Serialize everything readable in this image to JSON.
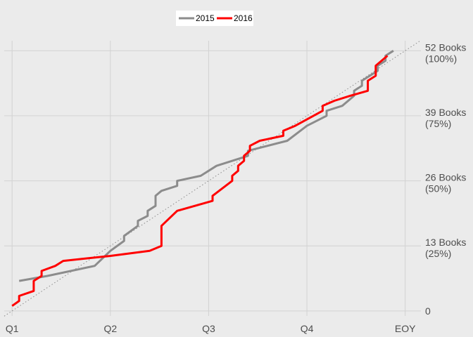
{
  "chart_data": {
    "type": "line",
    "title": "",
    "xlabel": "",
    "ylabel": "",
    "x_unit": "fraction of year",
    "xlim": [
      -0.02,
      1.04
    ],
    "ylim": [
      -1,
      54
    ],
    "x_ticks": [
      {
        "value": 0.0,
        "label": "Q1"
      },
      {
        "value": 0.25,
        "label": "Q2"
      },
      {
        "value": 0.5,
        "label": "Q3"
      },
      {
        "value": 0.75,
        "label": "Q4"
      },
      {
        "value": 1.0,
        "label": "EOY"
      }
    ],
    "y_ticks": [
      {
        "value": 0,
        "label": [
          "0"
        ]
      },
      {
        "value": 13,
        "label": [
          "13 Books",
          "(25%)"
        ]
      },
      {
        "value": 26,
        "label": [
          "26 Books",
          "(50%)"
        ]
      },
      {
        "value": 39,
        "label": [
          "39 Books",
          "(75%)"
        ]
      },
      {
        "value": 52,
        "label": [
          "52 Books",
          "(100%)"
        ]
      }
    ],
    "grid": true,
    "legend_position": "top-center",
    "reference_line": {
      "style": "dotted",
      "color": "#8a8a8a",
      "from": [
        -0.02,
        -1.04
      ],
      "to": [
        1.04,
        54.08
      ]
    },
    "series": [
      {
        "name": "2015",
        "color": "#8c8c8c",
        "points": [
          [
            0.018,
            6
          ],
          [
            0.09,
            7
          ],
          [
            0.21,
            9
          ],
          [
            0.25,
            12
          ],
          [
            0.285,
            14
          ],
          [
            0.285,
            15
          ],
          [
            0.32,
            17
          ],
          [
            0.32,
            18
          ],
          [
            0.345,
            19
          ],
          [
            0.345,
            20
          ],
          [
            0.365,
            21
          ],
          [
            0.365,
            23
          ],
          [
            0.38,
            24
          ],
          [
            0.42,
            25
          ],
          [
            0.42,
            26
          ],
          [
            0.48,
            27
          ],
          [
            0.52,
            29
          ],
          [
            0.6,
            31
          ],
          [
            0.6,
            32
          ],
          [
            0.7,
            34
          ],
          [
            0.75,
            37
          ],
          [
            0.8,
            39
          ],
          [
            0.8,
            40
          ],
          [
            0.84,
            41
          ],
          [
            0.87,
            43
          ],
          [
            0.87,
            44
          ],
          [
            0.89,
            45
          ],
          [
            0.89,
            46
          ],
          [
            0.93,
            48
          ],
          [
            0.93,
            49
          ],
          [
            0.95,
            50
          ],
          [
            0.95,
            51
          ],
          [
            0.97,
            52
          ]
        ]
      },
      {
        "name": "2016",
        "color": "#ff0000",
        "points": [
          [
            0.0,
            1
          ],
          [
            0.018,
            2
          ],
          [
            0.018,
            3
          ],
          [
            0.055,
            4
          ],
          [
            0.055,
            6
          ],
          [
            0.075,
            7
          ],
          [
            0.075,
            8
          ],
          [
            0.11,
            9
          ],
          [
            0.13,
            10
          ],
          [
            0.25,
            11
          ],
          [
            0.35,
            12
          ],
          [
            0.38,
            13
          ],
          [
            0.38,
            17
          ],
          [
            0.42,
            20
          ],
          [
            0.51,
            22
          ],
          [
            0.51,
            23
          ],
          [
            0.56,
            26
          ],
          [
            0.56,
            27
          ],
          [
            0.575,
            28
          ],
          [
            0.575,
            29
          ],
          [
            0.59,
            30
          ],
          [
            0.59,
            31
          ],
          [
            0.605,
            32
          ],
          [
            0.605,
            33
          ],
          [
            0.63,
            34
          ],
          [
            0.69,
            35
          ],
          [
            0.69,
            36
          ],
          [
            0.72,
            37
          ],
          [
            0.79,
            40
          ],
          [
            0.79,
            41
          ],
          [
            0.82,
            42
          ],
          [
            0.86,
            43
          ],
          [
            0.905,
            44
          ],
          [
            0.905,
            46
          ],
          [
            0.925,
            47
          ],
          [
            0.925,
            49
          ],
          [
            0.955,
            51
          ]
        ]
      }
    ]
  }
}
